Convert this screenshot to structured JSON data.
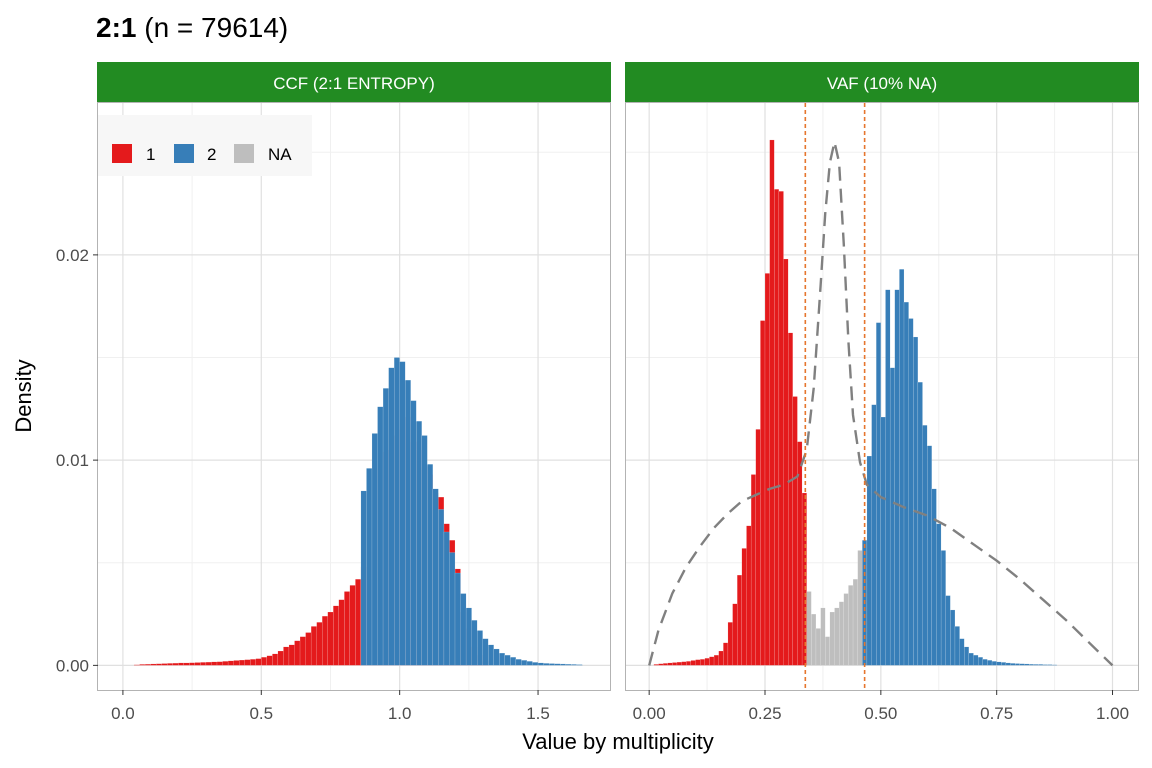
{
  "plot": {
    "title_bold": "2:1",
    "title_rest": " (n = 79614)",
    "xlabel": "Value by multiplicity",
    "ylabel": "Density"
  },
  "legend": {
    "position": "top-left inside first panel",
    "entries": [
      {
        "label": "1",
        "color": "#E41A1C"
      },
      {
        "label": "2",
        "color": "#377EB8"
      },
      {
        "label": "NA",
        "color": "#BEBEBE"
      }
    ]
  },
  "colors": {
    "strip": "#228B22",
    "cluster_1": "#E41A1C",
    "cluster_2": "#377EB8",
    "na": "#BEBEBE",
    "density_line": "#808080",
    "cutoff_line": "#E6762E"
  },
  "chart_data": [
    {
      "type": "bar",
      "panel": "CCF (2:1 ENTROPY)",
      "xlim": [
        -0.09,
        1.76
      ],
      "ylim": [
        -0.0012,
        0.0274
      ],
      "grid": true,
      "x_ticks": [
        0.0,
        0.5,
        1.0,
        1.5
      ],
      "x_tick_labels": [
        "0.0",
        "0.5",
        "1.0",
        "1.5"
      ],
      "y_ticks": [
        0.0,
        0.01,
        0.02
      ],
      "y_tick_labels": [
        "0.00",
        "0.01",
        "0.02"
      ],
      "bin_width": 0.02,
      "series": [
        {
          "name": "1",
          "x": [
            0.05,
            0.07,
            0.09,
            0.11,
            0.13,
            0.15,
            0.17,
            0.19,
            0.21,
            0.23,
            0.25,
            0.27,
            0.29,
            0.31,
            0.33,
            0.35,
            0.37,
            0.39,
            0.41,
            0.43,
            0.45,
            0.47,
            0.49,
            0.51,
            0.53,
            0.55,
            0.57,
            0.59,
            0.61,
            0.63,
            0.65,
            0.67,
            0.69,
            0.71,
            0.73,
            0.75,
            0.77,
            0.79,
            0.81,
            0.83,
            0.85,
            0.87,
            0.89,
            0.91,
            0.93,
            0.95,
            0.97,
            0.99,
            1.01,
            1.03,
            1.05,
            1.07,
            1.09,
            1.11,
            1.13,
            1.15,
            1.17,
            1.19,
            1.21,
            1.23,
            1.25,
            1.27,
            1.29,
            1.31
          ],
          "values": [
            3e-05,
            5e-05,
            6e-05,
            7e-05,
            8e-05,
            9e-05,
            0.0001,
            0.00011,
            0.00012,
            0.00012,
            0.00013,
            0.00014,
            0.00015,
            0.00016,
            0.00017,
            0.00018,
            0.0002,
            0.00022,
            0.00024,
            0.00026,
            0.00028,
            0.0003,
            0.00033,
            0.0004,
            0.00047,
            0.00056,
            0.0007,
            0.0009,
            0.001,
            0.0012,
            0.0014,
            0.0016,
            0.0019,
            0.0021,
            0.0024,
            0.0026,
            0.0029,
            0.0032,
            0.0036,
            0.0039,
            0.0042,
            0.0048,
            0.0055,
            0.0066,
            0.0096,
            0.0104,
            0.0105,
            0.0112,
            0.0115,
            0.0121,
            0.0109,
            0.0105,
            0.0097,
            0.0093,
            0.0084,
            0.0082,
            0.0069,
            0.0061,
            0.0047,
            0.0026,
            0.0018,
            0.0009,
            0.0005,
            0.0002
          ]
        },
        {
          "name": "2",
          "x": [
            0.87,
            0.89,
            0.91,
            0.93,
            0.95,
            0.97,
            0.99,
            1.01,
            1.03,
            1.05,
            1.07,
            1.09,
            1.11,
            1.13,
            1.15,
            1.17,
            1.19,
            1.21,
            1.23,
            1.25,
            1.27,
            1.29,
            1.31,
            1.33,
            1.35,
            1.37,
            1.39,
            1.41,
            1.43,
            1.45,
            1.47,
            1.49,
            1.51,
            1.53,
            1.55,
            1.57,
            1.59,
            1.61,
            1.63,
            1.65
          ],
          "values": [
            0.0085,
            0.0096,
            0.0113,
            0.0126,
            0.0135,
            0.0145,
            0.015,
            0.0148,
            0.0139,
            0.0129,
            0.0119,
            0.0112,
            0.0098,
            0.0086,
            0.0076,
            0.0065,
            0.0055,
            0.0045,
            0.0035,
            0.0028,
            0.0022,
            0.0017,
            0.0013,
            0.001,
            0.0008,
            0.0006,
            0.0005,
            0.0004,
            0.0003,
            0.00025,
            0.0002,
            0.00015,
            0.00012,
            0.0001,
            9e-05,
            8e-05,
            7e-05,
            6e-05,
            5e-05,
            4e-05
          ]
        }
      ]
    },
    {
      "type": "bar",
      "panel": "VAF (10% NA)",
      "xlim": [
        -0.05,
        1.055
      ],
      "ylim": [
        -0.0012,
        0.0274
      ],
      "grid": true,
      "x_ticks": [
        0.0,
        0.25,
        0.5,
        0.75,
        1.0
      ],
      "x_tick_labels": [
        "0.00",
        "0.25",
        "0.50",
        "0.75",
        "1.00"
      ],
      "bin_width": 0.01,
      "cutoffs": [
        0.337,
        0.465
      ],
      "series": [
        {
          "name": "1",
          "x": [
            0.015,
            0.025,
            0.035,
            0.045,
            0.055,
            0.065,
            0.075,
            0.085,
            0.095,
            0.105,
            0.115,
            0.125,
            0.135,
            0.145,
            0.155,
            0.165,
            0.175,
            0.185,
            0.195,
            0.205,
            0.215,
            0.225,
            0.235,
            0.245,
            0.255,
            0.265,
            0.275,
            0.285,
            0.295,
            0.305,
            0.315,
            0.325,
            0.335
          ],
          "values": [
            5e-05,
            8e-05,
            0.0001,
            0.00012,
            0.00014,
            0.00016,
            0.00018,
            0.0002,
            0.00024,
            0.00028,
            0.0003,
            0.00035,
            0.00042,
            0.0005,
            0.0007,
            0.0011,
            0.0021,
            0.003,
            0.0044,
            0.0057,
            0.0068,
            0.0093,
            0.0115,
            0.0168,
            0.0191,
            0.0256,
            0.0232,
            0.0231,
            0.0198,
            0.0162,
            0.0131,
            0.0109,
            0.0084
          ]
        },
        {
          "name": "NA",
          "x": [
            0.345,
            0.355,
            0.365,
            0.375,
            0.385,
            0.395,
            0.405,
            0.415,
            0.425,
            0.435,
            0.445,
            0.455
          ],
          "values": [
            0.0036,
            0.0025,
            0.0018,
            0.0028,
            0.0014,
            0.0026,
            0.0028,
            0.0031,
            0.0035,
            0.0039,
            0.0042,
            0.0056
          ]
        },
        {
          "name": "2",
          "x": [
            0.465,
            0.475,
            0.485,
            0.495,
            0.505,
            0.515,
            0.525,
            0.535,
            0.545,
            0.555,
            0.565,
            0.575,
            0.585,
            0.595,
            0.605,
            0.615,
            0.625,
            0.635,
            0.645,
            0.655,
            0.665,
            0.675,
            0.685,
            0.695,
            0.705,
            0.715,
            0.725,
            0.735,
            0.745,
            0.755,
            0.765,
            0.775,
            0.785,
            0.795,
            0.805,
            0.815,
            0.825,
            0.835,
            0.845,
            0.855,
            0.865,
            0.875
          ],
          "values": [
            0.0061,
            0.0102,
            0.0127,
            0.0167,
            0.0121,
            0.0183,
            0.0145,
            0.0183,
            0.0193,
            0.0177,
            0.0169,
            0.016,
            0.0138,
            0.0117,
            0.0107,
            0.0086,
            0.0069,
            0.0056,
            0.0034,
            0.0027,
            0.0019,
            0.0013,
            0.0009,
            0.0006,
            0.0005,
            0.0004,
            0.0003,
            0.00025,
            0.0002,
            0.00017,
            0.00015,
            0.00012,
            0.0001,
            9e-05,
            8e-05,
            7e-05,
            6e-05,
            5e-05,
            5e-05,
            4e-05,
            4e-05,
            3e-05
          ]
        }
      ],
      "density_curve": {
        "name": "density",
        "x": [
          0.0,
          0.02,
          0.05,
          0.08,
          0.11,
          0.14,
          0.17,
          0.2,
          0.23,
          0.26,
          0.29,
          0.32,
          0.34,
          0.355,
          0.37,
          0.38,
          0.39,
          0.4,
          0.41,
          0.42,
          0.43,
          0.44,
          0.455,
          0.47,
          0.5,
          0.55,
          0.6,
          0.65,
          0.7,
          0.75,
          0.8,
          0.85,
          0.9,
          0.95,
          1.0
        ],
        "values": [
          0.0,
          0.0017,
          0.0035,
          0.0048,
          0.0058,
          0.0067,
          0.0074,
          0.008,
          0.0083,
          0.0086,
          0.0088,
          0.0092,
          0.0105,
          0.0135,
          0.0185,
          0.022,
          0.0245,
          0.0255,
          0.0245,
          0.0205,
          0.0158,
          0.0122,
          0.0099,
          0.0088,
          0.0082,
          0.0077,
          0.0073,
          0.0067,
          0.0059,
          0.0051,
          0.0042,
          0.0032,
          0.0022,
          0.0011,
          0.0
        ]
      }
    }
  ]
}
